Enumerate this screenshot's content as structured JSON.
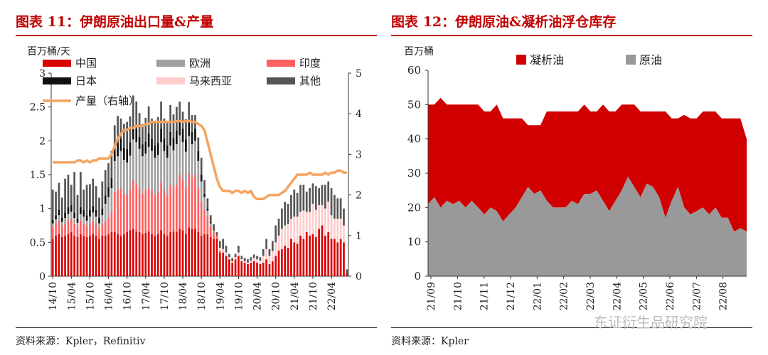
{
  "left": {
    "title": "图表 11：伊朗原油出口量&产量",
    "source": "资料来源：Kpler，Refinitiv",
    "unit_left": "百万桶/天"
  },
  "right": {
    "title": "图表 12：伊朗原油&凝析油浮仓库存",
    "source": "资料来源：Kpler",
    "unit": "百万桶"
  },
  "watermark": "东证衍生品研究院",
  "colors": {
    "china": "#d90000",
    "europe": "#a0a0a0",
    "india": "#ff6060",
    "japan": "#111111",
    "malaysia": "#ffcccc",
    "other": "#555555",
    "production": "#f4a460",
    "condensate": "#d00000",
    "crude": "#999999",
    "accent": "#c00000"
  },
  "chart_data": [
    {
      "type": "bar",
      "stacked": true,
      "ylim": [
        0,
        3
      ],
      "y2lim": [
        0,
        5
      ],
      "yticks": [
        "0",
        "0.5",
        "1",
        "1.5",
        "2",
        "2.5",
        "3"
      ],
      "y2ticks": [
        "0",
        "1",
        "2",
        "3",
        "4",
        "5"
      ],
      "x_tick_labels": [
        "14/10",
        "15/04",
        "15/10",
        "16/04",
        "16/10",
        "17/04",
        "17/10",
        "18/04",
        "18/10",
        "19/04",
        "19/10",
        "20/04",
        "20/10",
        "21/04",
        "21/10",
        "22/04"
      ],
      "legend": [
        {
          "name": "中国",
          "key": "china"
        },
        {
          "name": "欧洲",
          "key": "europe"
        },
        {
          "name": "印度",
          "key": "india"
        },
        {
          "name": "日本",
          "key": "japan"
        },
        {
          "name": "马来西亚",
          "key": "malaysia"
        },
        {
          "name": "其他",
          "key": "other"
        },
        {
          "name": "产量（右轴）",
          "key": "production"
        }
      ],
      "china": [
        0.55,
        0.6,
        0.62,
        0.58,
        0.6,
        0.62,
        0.65,
        0.6,
        0.58,
        0.62,
        0.6,
        0.58,
        0.6,
        0.62,
        0.6,
        0.55,
        0.6,
        0.6,
        0.62,
        0.65,
        0.65,
        0.62,
        0.6,
        0.62,
        0.65,
        0.68,
        0.7,
        0.66,
        0.65,
        0.62,
        0.64,
        0.66,
        0.62,
        0.6,
        0.62,
        0.68,
        0.62,
        0.6,
        0.65,
        0.66,
        0.65,
        0.7,
        0.68,
        0.62,
        0.72,
        0.7,
        0.7,
        0.65,
        0.6,
        0.62,
        0.62,
        0.58,
        0.55,
        0.55,
        0.35,
        0.35,
        0.3,
        0.25,
        0.2,
        0.25,
        0.3,
        0.22,
        0.2,
        0.18,
        0.2,
        0.22,
        0.2,
        0.18,
        0.2,
        0.25,
        0.18,
        0.22,
        0.3,
        0.38,
        0.4,
        0.45,
        0.42,
        0.55,
        0.5,
        0.48,
        0.6,
        0.55,
        0.65,
        0.6,
        0.62,
        0.58,
        0.7,
        0.75,
        0.6,
        0.65,
        0.55,
        0.55,
        0.5,
        0.55,
        0.5,
        0.05
      ],
      "india": [
        0.18,
        0.18,
        0.2,
        0.16,
        0.18,
        0.2,
        0.2,
        0.18,
        0.15,
        0.2,
        0.18,
        0.16,
        0.18,
        0.2,
        0.18,
        0.15,
        0.18,
        0.22,
        0.25,
        0.3,
        0.6,
        0.65,
        0.7,
        0.6,
        0.55,
        0.6,
        0.72,
        0.7,
        0.65,
        0.6,
        0.62,
        0.65,
        0.65,
        0.6,
        0.62,
        0.7,
        0.65,
        0.6,
        0.7,
        0.65,
        0.7,
        0.8,
        0.75,
        0.7,
        0.8,
        0.75,
        0.8,
        0.65,
        0.5,
        0.35,
        0.25,
        0.15,
        0.1,
        0.05,
        0.02,
        0,
        0,
        0,
        0,
        0,
        0,
        0,
        0,
        0,
        0,
        0,
        0,
        0,
        0,
        0,
        0,
        0,
        0,
        0,
        0,
        0,
        0,
        0,
        0,
        0,
        0,
        0,
        0,
        0,
        0,
        0,
        0,
        0,
        0,
        0,
        0,
        0,
        0,
        0,
        0,
        0
      ],
      "europe": [
        0.05,
        0.06,
        0.08,
        0.06,
        0.08,
        0.1,
        0.1,
        0.08,
        0.06,
        0.1,
        0.1,
        0.08,
        0.1,
        0.12,
        0.1,
        0.08,
        0.12,
        0.25,
        0.3,
        0.35,
        0.45,
        0.5,
        0.55,
        0.5,
        0.48,
        0.5,
        0.6,
        0.62,
        0.58,
        0.55,
        0.55,
        0.6,
        0.58,
        0.55,
        0.55,
        0.6,
        0.58,
        0.55,
        0.58,
        0.55,
        0.6,
        0.58,
        0.55,
        0.52,
        0.55,
        0.5,
        0.5,
        0.4,
        0.3,
        0.2,
        0.1,
        0.05,
        0.02,
        0,
        0,
        0,
        0,
        0,
        0,
        0,
        0,
        0,
        0,
        0,
        0,
        0,
        0,
        0,
        0,
        0,
        0,
        0,
        0,
        0,
        0,
        0,
        0,
        0,
        0,
        0,
        0,
        0,
        0,
        0,
        0,
        0,
        0,
        0,
        0,
        0,
        0,
        0,
        0,
        0,
        0,
        0
      ],
      "malaysia": [
        0,
        0,
        0,
        0,
        0,
        0,
        0,
        0,
        0,
        0,
        0,
        0,
        0,
        0,
        0,
        0,
        0,
        0,
        0,
        0,
        0,
        0,
        0,
        0,
        0,
        0,
        0,
        0,
        0,
        0,
        0,
        0,
        0,
        0,
        0,
        0,
        0,
        0,
        0,
        0,
        0,
        0,
        0,
        0,
        0,
        0,
        0,
        0,
        0,
        0,
        0,
        0,
        0,
        0,
        0.05,
        0.05,
        0.05,
        0.03,
        0.02,
        0.03,
        0.05,
        0.03,
        0.02,
        0.02,
        0.03,
        0.05,
        0.05,
        0.05,
        0.1,
        0.15,
        0.12,
        0.15,
        0.2,
        0.22,
        0.3,
        0.3,
        0.35,
        0.3,
        0.38,
        0.4,
        0.35,
        0.42,
        0.3,
        0.35,
        0.45,
        0.4,
        0.35,
        0.3,
        0.4,
        0.45,
        0.35,
        0.3,
        0.35,
        0.3,
        0.25,
        0
      ],
      "japan": [
        0.05,
        0.06,
        0.08,
        0.06,
        0.08,
        0.1,
        0.1,
        0.08,
        0.06,
        0.1,
        0.1,
        0.08,
        0.1,
        0.1,
        0.1,
        0.08,
        0.1,
        0.12,
        0.15,
        0.15,
        0.18,
        0.2,
        0.18,
        0.18,
        0.2,
        0.2,
        0.2,
        0.2,
        0.18,
        0.18,
        0.18,
        0.2,
        0.18,
        0.18,
        0.18,
        0.2,
        0.18,
        0.18,
        0.2,
        0.18,
        0.2,
        0.2,
        0.2,
        0.18,
        0.2,
        0.18,
        0.18,
        0.15,
        0.1,
        0.05,
        0.03,
        0.02,
        0,
        0,
        0,
        0,
        0,
        0,
        0,
        0,
        0,
        0,
        0,
        0,
        0,
        0,
        0,
        0,
        0,
        0,
        0,
        0,
        0,
        0,
        0,
        0,
        0,
        0,
        0,
        0,
        0,
        0,
        0,
        0,
        0,
        0,
        0,
        0,
        0,
        0,
        0,
        0,
        0,
        0,
        0,
        0
      ],
      "other": [
        0.45,
        0.35,
        0.4,
        0.3,
        0.5,
        0.48,
        0.3,
        0.6,
        0.35,
        0.52,
        0.3,
        0.45,
        0.38,
        0.4,
        0.35,
        0.3,
        0.4,
        0.38,
        0.35,
        0.4,
        0.35,
        0.4,
        0.3,
        0.35,
        0.4,
        0.38,
        0.45,
        0.4,
        0.35,
        0.3,
        0.35,
        0.4,
        0.3,
        0.35,
        0.38,
        0.4,
        0.3,
        0.35,
        0.4,
        0.35,
        0.35,
        0.3,
        0.25,
        0.3,
        0.3,
        0.25,
        0.2,
        0.2,
        0.25,
        0.2,
        0.15,
        0.1,
        0.1,
        0.05,
        0.1,
        0.15,
        0.1,
        0.05,
        0.05,
        0.05,
        0.1,
        0.05,
        0.05,
        0.05,
        0.05,
        0.05,
        0.05,
        0.05,
        0.1,
        0.15,
        0.1,
        0.15,
        0.25,
        0.25,
        0.3,
        0.35,
        0.3,
        0.35,
        0.4,
        0.35,
        0.4,
        0.38,
        0.3,
        0.35,
        0.3,
        0.35,
        0.25,
        0.3,
        0.35,
        0.3,
        0.4,
        0.35,
        0.3,
        0.3,
        0.25,
        0.05
      ],
      "production": [
        2.8,
        2.8,
        2.8,
        2.8,
        2.8,
        2.8,
        2.8,
        2.8,
        2.85,
        2.85,
        2.8,
        2.85,
        2.8,
        2.85,
        2.85,
        2.9,
        2.9,
        2.9,
        2.9,
        3.0,
        3.2,
        3.4,
        3.5,
        3.6,
        3.6,
        3.65,
        3.65,
        3.7,
        3.7,
        3.7,
        3.75,
        3.75,
        3.8,
        3.8,
        3.8,
        3.8,
        3.8,
        3.8,
        3.8,
        3.8,
        3.82,
        3.82,
        3.8,
        3.82,
        3.82,
        3.8,
        3.8,
        3.75,
        3.7,
        3.6,
        3.3,
        3.0,
        2.7,
        2.4,
        2.2,
        2.1,
        2.1,
        2.1,
        2.05,
        2.1,
        2.1,
        2.05,
        2.1,
        2.05,
        2.1,
        1.95,
        1.9,
        1.9,
        1.9,
        1.95,
        2.0,
        2.0,
        2.0,
        2.0,
        2.05,
        2.1,
        2.2,
        2.3,
        2.4,
        2.5,
        2.5,
        2.5,
        2.5,
        2.55,
        2.5,
        2.5,
        2.5,
        2.5,
        2.55,
        2.5,
        2.55,
        2.55,
        2.6,
        2.6,
        2.55,
        2.55
      ]
    },
    {
      "type": "area",
      "stacked": true,
      "ylim": [
        0,
        60
      ],
      "yticks": [
        "0",
        "10",
        "20",
        "30",
        "40",
        "50",
        "60"
      ],
      "x_tick_labels": [
        "21/09",
        "21/10",
        "21/11",
        "21/12",
        "22/01",
        "22/02",
        "22/03",
        "22/04",
        "22/05",
        "22/06",
        "22/07",
        "22/08"
      ],
      "legend": [
        {
          "name": "凝析油",
          "key": "condensate"
        },
        {
          "name": "原油",
          "key": "crude"
        }
      ],
      "crude": [
        21,
        23,
        20,
        22,
        21,
        22,
        20,
        22,
        20,
        18,
        20,
        19,
        16,
        18,
        20,
        23,
        26,
        24,
        25,
        22,
        20,
        20,
        20,
        22,
        21,
        24,
        24,
        25,
        22,
        19,
        22,
        25,
        29,
        26,
        23,
        27,
        26,
        23,
        17,
        22,
        26,
        20,
        18,
        19,
        20,
        18,
        20,
        17,
        17,
        13,
        14,
        13
      ],
      "total": [
        50,
        50,
        52,
        50,
        50,
        50,
        50,
        50,
        50,
        48,
        48,
        50,
        46,
        46,
        46,
        46,
        44,
        44,
        44,
        48,
        48,
        48,
        48,
        48,
        48,
        50,
        48,
        48,
        50,
        48,
        48,
        50,
        50,
        50,
        48,
        48,
        48,
        48,
        48,
        46,
        46,
        47,
        46,
        46,
        48,
        48,
        48,
        46,
        46,
        46,
        46,
        40
      ]
    }
  ]
}
